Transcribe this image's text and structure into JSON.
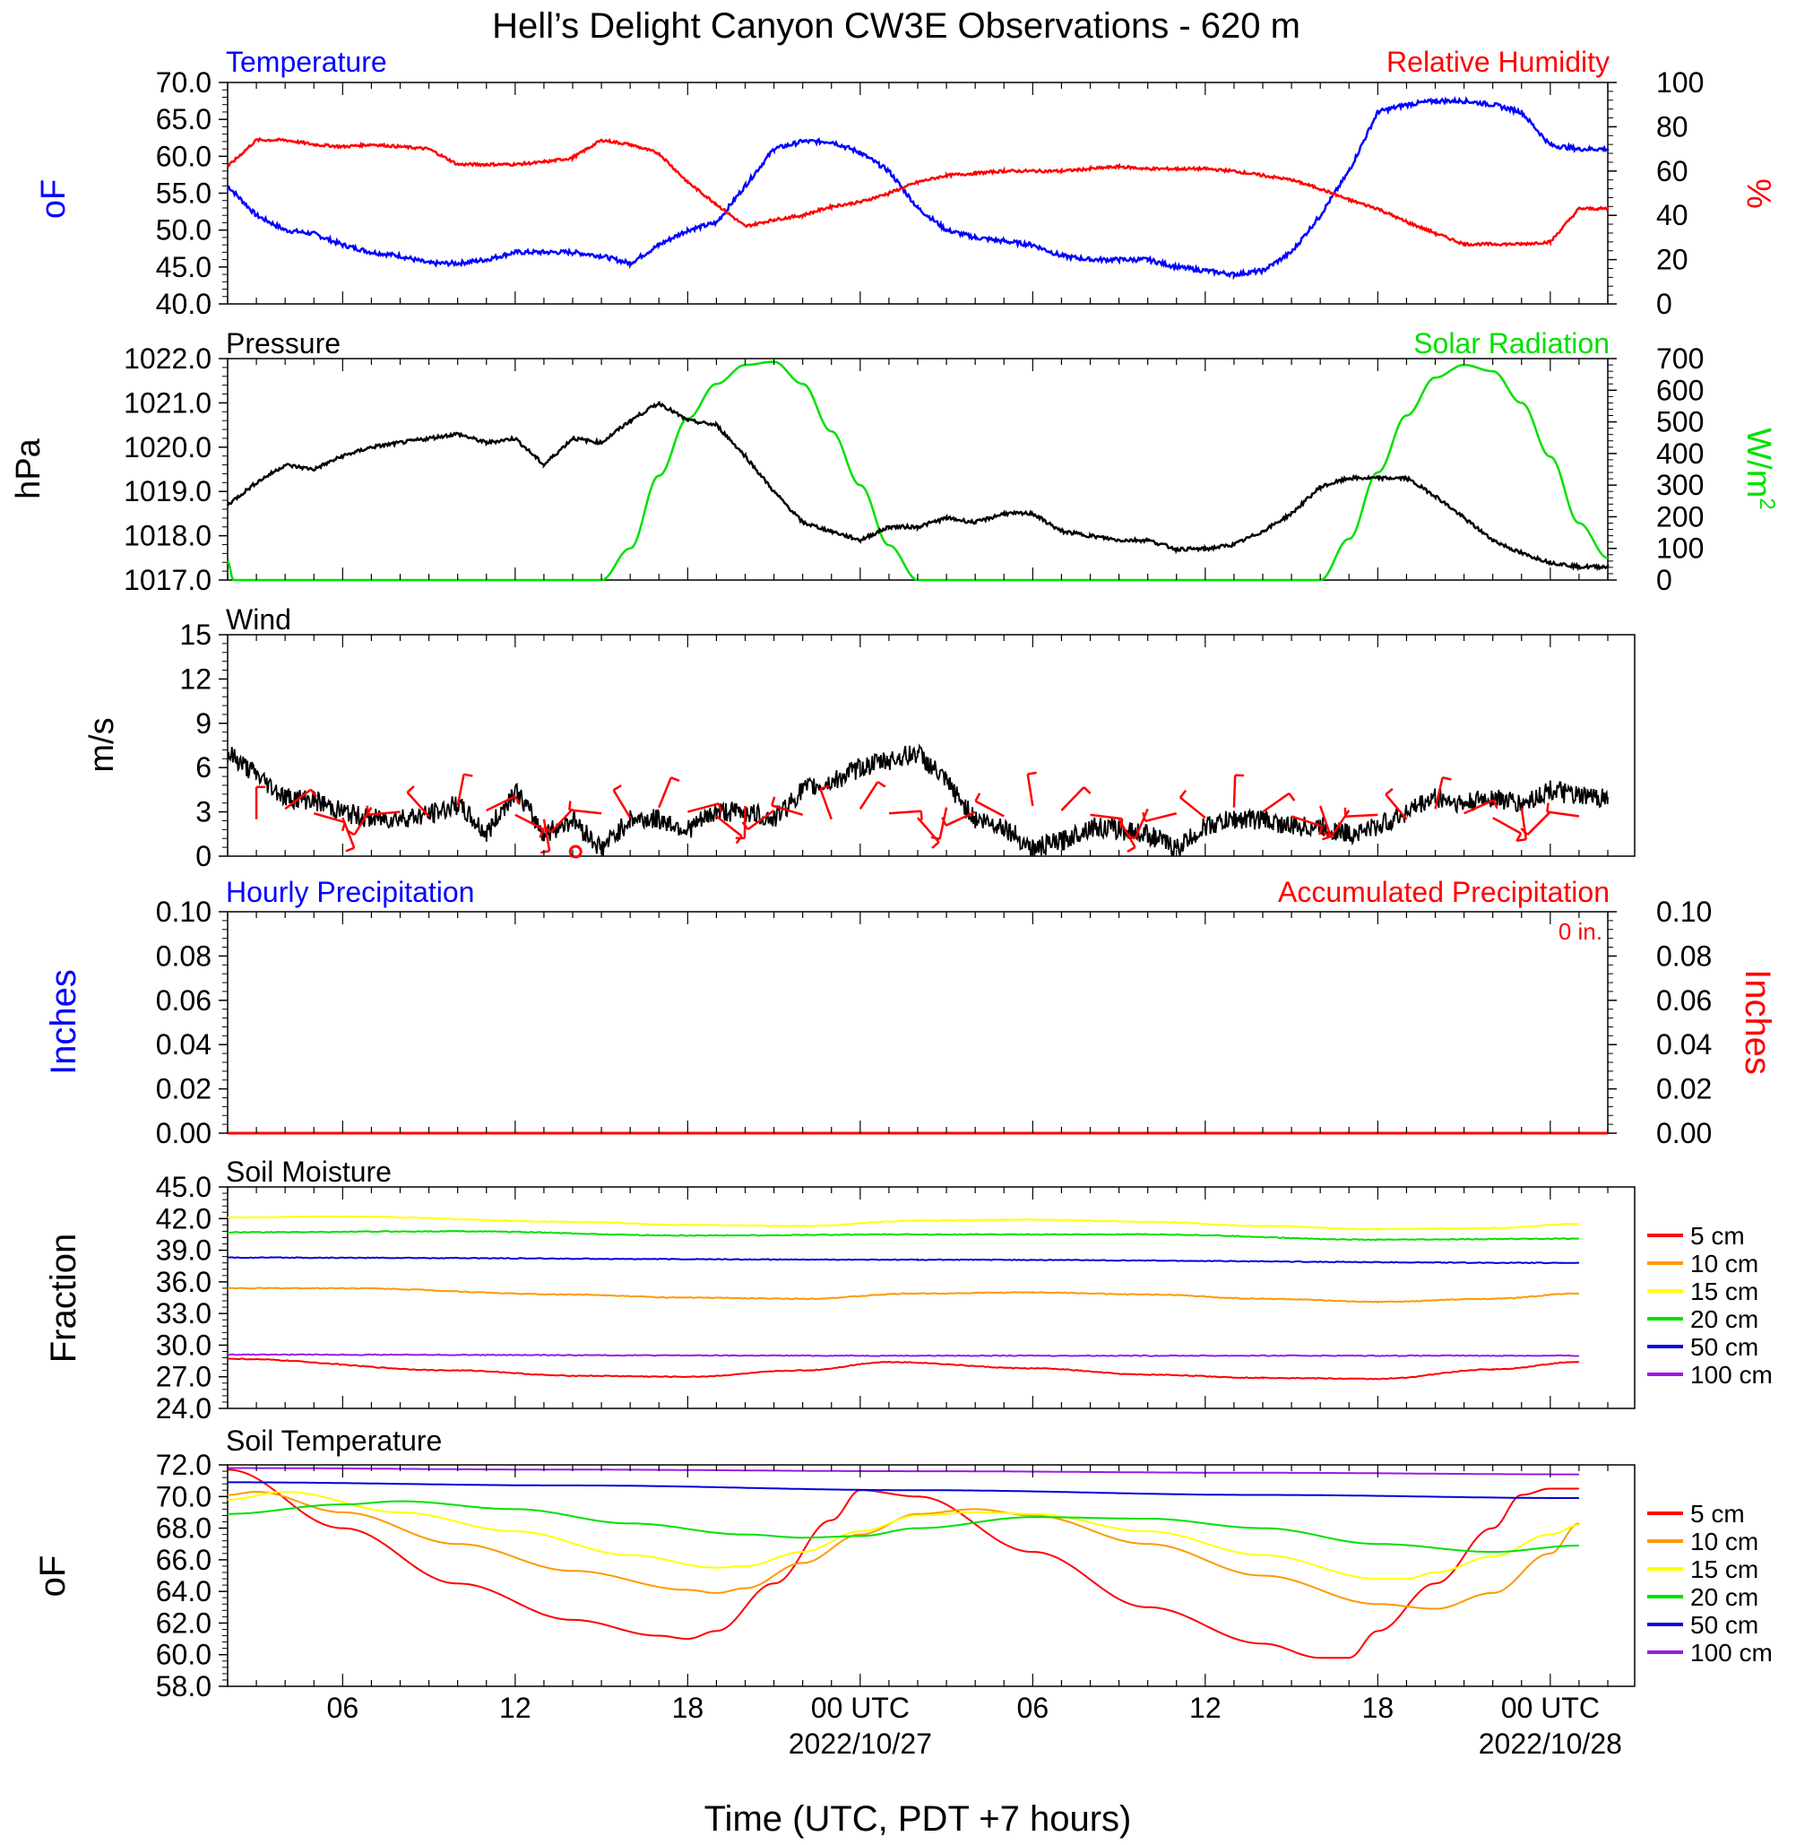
{
  "title": "Hell’s Delight Canyon CW3E Observations - 620 m",
  "xlabel": "Time (UTC, PDT +7 hours)",
  "x_ticks": [
    {
      "label": "06",
      "date": ""
    },
    {
      "label": "12",
      "date": ""
    },
    {
      "label": "18",
      "date": ""
    },
    {
      "label": "00 UTC",
      "date": "2022/10/27"
    },
    {
      "label": "06",
      "date": ""
    },
    {
      "label": "12",
      "date": ""
    },
    {
      "label": "18",
      "date": ""
    },
    {
      "label": "00 UTC",
      "date": "2022/10/28"
    }
  ],
  "colors": {
    "blue": "#0000ff",
    "red": "#ff0000",
    "green": "#00e000",
    "black": "#000000",
    "orange": "#ff9900",
    "yellow": "#ffff00",
    "darkblue": "#0000dd",
    "purple": "#9a1ae6"
  },
  "panels": {
    "temp": {
      "left_title": "Temperature",
      "right_title": "Relative Humidity",
      "left_unit": "oF",
      "right_unit": "%"
    },
    "pres": {
      "left_title": "Pressure",
      "right_title": "Solar Radiation",
      "left_unit": "hPa",
      "right_unit": "W/m2"
    },
    "wind": {
      "left_title": "Wind",
      "left_unit": "m/s"
    },
    "precip": {
      "left_title": "Hourly Precipitation",
      "right_title": "Accumulated Precipitation",
      "left_unit": "Inches",
      "right_unit": "Inches",
      "total": "0 in."
    },
    "sm": {
      "left_title": "Soil Moisture",
      "left_unit": "Fraction"
    },
    "st": {
      "left_title": "Soil Temperature",
      "left_unit": "oF"
    }
  },
  "chart_data": [
    {
      "type": "line",
      "name": "temperature_rh",
      "x_unit": "hours from 2022-10-26 02 UTC",
      "xlim": [
        0,
        48
      ],
      "ylim_left": [
        40,
        70
      ],
      "yticks_left": [
        "70.0",
        "65.0",
        "60.0",
        "55.0",
        "50.0",
        "45.0",
        "40.0"
      ],
      "ylim_right": [
        0,
        100
      ],
      "yticks_right": [
        "100",
        "80",
        "60",
        "40",
        "20",
        "0"
      ],
      "series": [
        {
          "name": "Temperature",
          "axis": "left",
          "color": "#0000ff",
          "x": [
            0,
            1,
            2,
            3,
            4,
            5,
            6,
            7,
            8,
            9,
            10,
            11,
            12,
            13,
            14,
            15,
            16,
            17,
            18,
            19,
            20,
            21,
            22,
            23,
            24,
            25,
            26,
            27,
            28,
            29,
            30,
            31,
            32,
            33,
            34,
            35,
            36,
            37,
            38,
            39,
            40,
            41,
            42,
            43,
            44,
            45,
            46,
            47,
            48
          ],
          "y": [
            56,
            52,
            50,
            49.5,
            48,
            47,
            46.5,
            45.5,
            45.5,
            46,
            47,
            47,
            47,
            46.5,
            45.5,
            48,
            50,
            51,
            56,
            61,
            62,
            62,
            60.5,
            58,
            53,
            50,
            49,
            48.5,
            48,
            46.5,
            46,
            46,
            46,
            45,
            44.5,
            44,
            44.5,
            47,
            52,
            58,
            66,
            67,
            67.5,
            67.5,
            67,
            66,
            61.5,
            61,
            61
          ]
        },
        {
          "name": "Relative Humidity",
          "axis": "right",
          "color": "#ff0000",
          "x": [
            0,
            1,
            2,
            3,
            4,
            5,
            6,
            7,
            8,
            9,
            10,
            11,
            12,
            13,
            14,
            15,
            16,
            17,
            18,
            19,
            20,
            21,
            22,
            23,
            24,
            25,
            26,
            27,
            28,
            29,
            30,
            31,
            32,
            33,
            34,
            35,
            36,
            37,
            38,
            39,
            40,
            41,
            42,
            43,
            44,
            45,
            46,
            47,
            48
          ],
          "y": [
            62,
            74,
            74,
            72,
            71,
            72,
            71,
            70,
            63,
            63,
            63,
            64,
            66,
            74,
            72,
            68,
            55,
            45,
            35,
            38,
            40,
            44,
            46,
            50,
            55,
            58,
            59,
            60,
            60,
            60,
            61,
            62,
            61,
            61,
            61,
            60,
            58,
            56,
            52,
            47,
            43,
            37,
            32,
            27,
            27,
            27,
            28,
            43,
            43
          ]
        }
      ]
    },
    {
      "type": "line",
      "name": "pressure_solar",
      "x_unit": "hours from 2022-10-26 02 UTC",
      "xlim": [
        0,
        48
      ],
      "ylim_left": [
        1017,
        1022
      ],
      "yticks_left": [
        "1022.0",
        "1021.0",
        "1020.0",
        "1019.0",
        "1018.0",
        "1017.0"
      ],
      "ylim_right": [
        0,
        700
      ],
      "yticks_right": [
        "700",
        "600",
        "500",
        "400",
        "300",
        "200",
        "100",
        "0"
      ],
      "series": [
        {
          "name": "Pressure",
          "axis": "left",
          "color": "#000000",
          "x": [
            0,
            1,
            2,
            3,
            4,
            5,
            6,
            7,
            8,
            9,
            10,
            11,
            12,
            13,
            14,
            15,
            16,
            17,
            18,
            19,
            20,
            21,
            22,
            23,
            24,
            25,
            26,
            27,
            28,
            29,
            30,
            31,
            32,
            33,
            34,
            35,
            36,
            37,
            38,
            39,
            40,
            41,
            42,
            43,
            44,
            45,
            46,
            47,
            48
          ],
          "y": [
            1018.7,
            1019.2,
            1019.6,
            1019.5,
            1019.8,
            1020.0,
            1020.1,
            1020.2,
            1020.3,
            1020.1,
            1020.2,
            1019.6,
            1020.2,
            1020.1,
            1020.6,
            1021.0,
            1020.6,
            1020.5,
            1019.8,
            1019.0,
            1018.3,
            1018.1,
            1017.9,
            1018.2,
            1018.2,
            1018.4,
            1018.3,
            1018.5,
            1018.5,
            1018.1,
            1018.0,
            1017.9,
            1017.9,
            1017.7,
            1017.7,
            1017.8,
            1018.1,
            1018.5,
            1019.1,
            1019.3,
            1019.3,
            1019.3,
            1018.9,
            1018.4,
            1017.9,
            1017.6,
            1017.4,
            1017.3,
            1017.3
          ]
        },
        {
          "name": "Solar Radiation",
          "axis": "right",
          "color": "#00e000",
          "x": [
            0,
            0.2,
            13,
            14,
            15,
            16,
            17,
            18,
            19,
            20,
            21,
            22,
            23,
            24,
            25,
            38,
            39,
            40,
            41,
            42,
            43,
            44,
            45,
            46,
            47,
            48
          ],
          "y": [
            60,
            0,
            0,
            100,
            330,
            510,
            620,
            680,
            690,
            620,
            470,
            300,
            110,
            0,
            0,
            0,
            130,
            340,
            520,
            640,
            680,
            660,
            560,
            390,
            180,
            70
          ]
        }
      ]
    },
    {
      "type": "line",
      "name": "wind",
      "x_unit": "hours from 2022-10-26 02 UTC",
      "xlim": [
        0,
        48
      ],
      "ylim": [
        0,
        15
      ],
      "yticks": [
        "15",
        "12",
        "9",
        "6",
        "3",
        "0"
      ],
      "series": [
        {
          "name": "Wind",
          "color": "#000000",
          "x": [
            0,
            1,
            2,
            3,
            4,
            5,
            6,
            7,
            8,
            9,
            10,
            11,
            12,
            13,
            14,
            15,
            16,
            17,
            18,
            19,
            20,
            21,
            22,
            23,
            24,
            25,
            26,
            27,
            28,
            29,
            30,
            31,
            32,
            33,
            34,
            35,
            36,
            37,
            38,
            39,
            40,
            41,
            42,
            43,
            44,
            45,
            46,
            47,
            48
          ],
          "y": [
            7,
            5.5,
            4,
            3.8,
            3,
            2.5,
            2.6,
            2.8,
            3.5,
            1.5,
            4.5,
            1.5,
            2.5,
            0.5,
            2.5,
            2.5,
            1.8,
            3,
            3,
            2.5,
            4.5,
            5,
            6,
            6.5,
            7,
            5,
            2.5,
            2,
            0.5,
            1,
            2,
            1.8,
            1.5,
            0.5,
            2,
            2.5,
            2.5,
            2,
            2,
            1.5,
            2,
            3,
            4,
            3.5,
            4,
            3.5,
            4.5,
            4,
            4
          ]
        }
      ],
      "barbs_x": [
        1,
        2,
        3,
        4,
        5,
        6,
        7,
        8,
        9,
        10,
        11,
        12,
        13,
        14,
        15,
        16,
        17,
        18,
        19,
        20,
        21,
        22,
        23,
        24,
        25,
        26,
        27,
        28,
        29,
        30,
        31,
        32,
        33,
        34,
        35,
        36,
        37,
        38,
        39,
        40,
        41,
        42,
        43,
        44,
        45,
        46,
        47
      ],
      "calm_marker_x": 12.1
    },
    {
      "type": "line",
      "name": "precipitation",
      "x_unit": "hours from 2022-10-26 02 UTC",
      "xlim": [
        0,
        48
      ],
      "ylim": [
        0,
        0.1
      ],
      "yticks": [
        "0.10",
        "0.08",
        "0.06",
        "0.04",
        "0.02",
        "0.00"
      ],
      "series": [
        {
          "name": "Hourly Precipitation",
          "color": "#0000ff",
          "x": [
            0,
            48
          ],
          "y": [
            0,
            0
          ]
        },
        {
          "name": "Accumulated Precipitation",
          "color": "#ff0000",
          "x": [
            0,
            48
          ],
          "y": [
            0,
            0
          ]
        }
      ]
    },
    {
      "type": "line",
      "name": "soil_moisture",
      "x_unit": "hours from 2022-10-26 02 UTC",
      "xlim": [
        0,
        48
      ],
      "ylim": [
        24,
        45
      ],
      "yticks": [
        "45.0",
        "42.0",
        "39.0",
        "36.0",
        "33.0",
        "30.0",
        "27.0",
        "24.0"
      ],
      "series": [
        {
          "name": "5 cm",
          "color": "#ff0000",
          "x": [
            0,
            8,
            12,
            16,
            20,
            23,
            28,
            32,
            36,
            40,
            44,
            47
          ],
          "y": [
            28.7,
            27.6,
            27.1,
            27.0,
            27.6,
            28.4,
            27.8,
            27.2,
            26.9,
            26.8,
            27.7,
            28.4
          ]
        },
        {
          "name": "10 cm",
          "color": "#ff9900",
          "x": [
            0,
            4,
            12,
            16,
            20,
            24,
            28,
            32,
            36,
            40,
            44,
            47
          ],
          "y": [
            35.4,
            35.4,
            34.8,
            34.5,
            34.4,
            34.9,
            35.0,
            34.8,
            34.4,
            34.1,
            34.4,
            34.9
          ]
        },
        {
          "name": "15 cm",
          "color": "#ffff00",
          "x": [
            0,
            4,
            12,
            16,
            20,
            24,
            28,
            32,
            36,
            40,
            44,
            47
          ],
          "y": [
            42.1,
            42.2,
            41.7,
            41.4,
            41.3,
            41.8,
            41.9,
            41.7,
            41.3,
            41.0,
            41.1,
            41.5
          ]
        },
        {
          "name": "20 cm",
          "color": "#00e000",
          "x": [
            0,
            8,
            16,
            24,
            32,
            40,
            47
          ],
          "y": [
            40.7,
            40.8,
            40.4,
            40.5,
            40.5,
            40.0,
            40.1
          ]
        },
        {
          "name": "50 cm",
          "color": "#0000dd",
          "x": [
            0,
            24,
            47
          ],
          "y": [
            38.3,
            38.1,
            37.8
          ]
        },
        {
          "name": "100 cm",
          "color": "#9a1ae6",
          "x": [
            0,
            24,
            47
          ],
          "y": [
            29.1,
            29.0,
            29.0
          ]
        }
      ]
    },
    {
      "type": "line",
      "name": "soil_temperature",
      "x_unit": "hours from 2022-10-26 02 UTC",
      "xlim": [
        0,
        48
      ],
      "ylim": [
        58,
        72
      ],
      "yticks": [
        "72.0",
        "70.0",
        "68.0",
        "66.0",
        "64.0",
        "62.0",
        "60.0",
        "58.0"
      ],
      "series": [
        {
          "name": "5 cm",
          "color": "#ff0000",
          "x": [
            0,
            4,
            8,
            12,
            15,
            16,
            17,
            19,
            21,
            22,
            24,
            28,
            32,
            36,
            38,
            39,
            40,
            42,
            44,
            45,
            46,
            47
          ],
          "y": [
            71.7,
            68.0,
            64.5,
            62.2,
            61.2,
            61.0,
            61.5,
            64.5,
            68.5,
            70.4,
            70.0,
            66.5,
            63.0,
            60.7,
            59.8,
            59.8,
            61.5,
            64.5,
            68.0,
            70.1,
            70.5,
            70.5
          ]
        },
        {
          "name": "10 cm",
          "color": "#ff9900",
          "x": [
            0,
            1,
            4,
            8,
            12,
            16,
            17,
            18,
            20,
            22,
            24,
            26,
            28,
            32,
            36,
            40,
            42,
            44,
            46,
            47
          ],
          "y": [
            70.1,
            70.3,
            69.0,
            67.0,
            65.3,
            64.1,
            63.9,
            64.2,
            65.8,
            67.6,
            68.9,
            69.2,
            68.8,
            67.0,
            65.0,
            63.2,
            62.9,
            63.9,
            66.4,
            68.3
          ]
        },
        {
          "name": "15 cm",
          "color": "#ffff00",
          "x": [
            0,
            2,
            6,
            10,
            14,
            17,
            18,
            20,
            22,
            24,
            26,
            28,
            32,
            36,
            40,
            41,
            42,
            44,
            46,
            47
          ],
          "y": [
            69.8,
            70.3,
            69.0,
            67.8,
            66.3,
            65.5,
            65.6,
            66.5,
            67.8,
            68.8,
            69.0,
            68.9,
            67.8,
            66.3,
            64.8,
            64.8,
            65.2,
            66.2,
            67.6,
            68.2
          ]
        },
        {
          "name": "20 cm",
          "color": "#00e000",
          "x": [
            0,
            4,
            6,
            10,
            14,
            18,
            20,
            22,
            24,
            28,
            32,
            36,
            40,
            44,
            47
          ],
          "y": [
            68.9,
            69.5,
            69.7,
            69.2,
            68.3,
            67.6,
            67.4,
            67.5,
            68.0,
            68.7,
            68.6,
            68.0,
            67.0,
            66.5,
            66.9
          ]
        },
        {
          "name": "50 cm",
          "color": "#0000dd",
          "x": [
            0,
            12,
            24,
            36,
            47
          ],
          "y": [
            70.9,
            70.7,
            70.4,
            70.1,
            69.9
          ]
        },
        {
          "name": "100 cm",
          "color": "#9a1ae6",
          "x": [
            0,
            12,
            24,
            36,
            47
          ],
          "y": [
            71.8,
            71.7,
            71.6,
            71.5,
            71.4
          ]
        }
      ]
    }
  ]
}
